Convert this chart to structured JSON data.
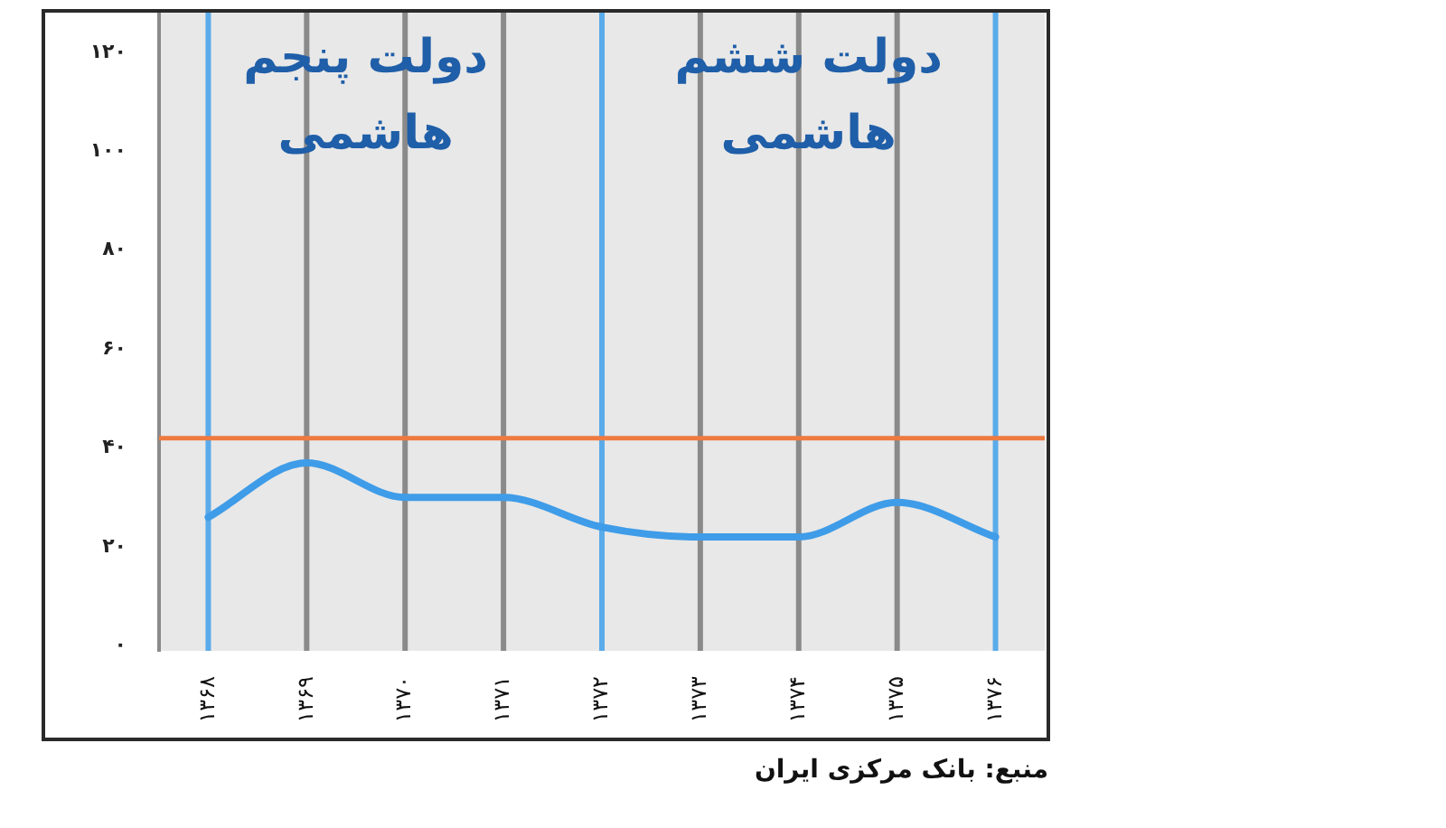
{
  "chart_data": {
    "type": "line",
    "categories": [
      "۱۳۶۸",
      "۱۳۶۹",
      "۱۳۷۰",
      "۱۳۷۱",
      "۱۳۷۲",
      "۱۳۷۳",
      "۱۳۷۴",
      "۱۳۷۵",
      "۱۳۷۶"
    ],
    "series": [
      {
        "color": "#3f9ce8",
        "values": [
          26,
          37,
          30,
          30,
          24,
          22,
          22,
          29,
          22
        ]
      }
    ],
    "ylim": [
      -1,
      128
    ],
    "yticks": [
      {
        "value": 0,
        "label": "۰"
      },
      {
        "value": 20,
        "label": "۲۰"
      },
      {
        "value": 40,
        "label": "۴۰"
      },
      {
        "value": 60,
        "label": "۶۰"
      },
      {
        "value": 80,
        "label": "۸۰"
      },
      {
        "value": 100,
        "label": "۱۰۰"
      },
      {
        "value": 120,
        "label": "۱۲۰"
      }
    ],
    "marker": "none",
    "ref_lines": [
      {
        "axis": "x",
        "value": "۱۳۶۹",
        "color": "#8a8a8a"
      },
      {
        "axis": "x",
        "value": "۱۳۷۰",
        "color": "#8a8a8a"
      },
      {
        "axis": "x",
        "value": "۱۳۷۱",
        "color": "#8a8a8a"
      },
      {
        "axis": "x",
        "value": "۱۳۷۳",
        "color": "#8a8a8a"
      },
      {
        "axis": "x",
        "value": "۱۳۷۴",
        "color": "#8a8a8a"
      },
      {
        "axis": "x",
        "value": "۱۳۷۵",
        "color": "#8a8a8a"
      },
      {
        "axis": "x",
        "value": "۱۳۶۸",
        "color": "#5aabea"
      },
      {
        "axis": "x",
        "value": "۱۳۷۲",
        "color": "#5aabea"
      },
      {
        "axis": "x",
        "value": "۱۳۷۶",
        "color": "#5aabea"
      },
      {
        "axis": "y",
        "value": 42,
        "color": "#ee7a40"
      }
    ],
    "annotations": [
      "دولت پنجم هاشمی",
      "دولت ششم هاشمی",
      "منبع: بانک مرکزی ایران"
    ]
  }
}
